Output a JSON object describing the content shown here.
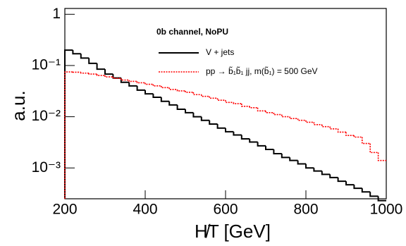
{
  "chart_data": {
    "type": "histogram",
    "annotations": [
      "0b channel, NoPU"
    ],
    "x_label": "H̸T [GeV]",
    "y_label": "a.u.",
    "bins": [
      200,
      220,
      240,
      260,
      280,
      300,
      320,
      340,
      360,
      380,
      400,
      420,
      440,
      460,
      480,
      500,
      520,
      540,
      560,
      580,
      600,
      620,
      640,
      660,
      680,
      700,
      720,
      740,
      760,
      780,
      800,
      820,
      840,
      860,
      880,
      900,
      920,
      940,
      960,
      980,
      1000
    ],
    "series": [
      {
        "name": "V + jets",
        "color": "#000000",
        "style": "solid",
        "values": [
          0.2,
          0.17,
          0.14,
          0.11,
          0.085,
          0.068,
          0.057,
          0.047,
          0.04,
          0.033,
          0.028,
          0.024,
          0.02,
          0.017,
          0.014,
          0.012,
          0.01,
          0.0085,
          0.0072,
          0.006,
          0.0051,
          0.0044,
          0.0037,
          0.0032,
          0.0027,
          0.0023,
          0.0019,
          0.0016,
          0.0014,
          0.0012,
          0.001,
          0.00087,
          0.00075,
          0.00065,
          0.00055,
          0.00047,
          0.0004,
          0.00034,
          0.00028,
          0.00023
        ]
      },
      {
        "name": "pp → b̃₁b̃₁ jj, m(b̃₁) = 500 GeV",
        "color": "#ff0000",
        "style": "dotted",
        "values": [
          0.075,
          0.074,
          0.071,
          0.068,
          0.064,
          0.06,
          0.056,
          0.052,
          0.049,
          0.046,
          0.043,
          0.04,
          0.037,
          0.034,
          0.032,
          0.03,
          0.027,
          0.025,
          0.023,
          0.021,
          0.019,
          0.018,
          0.016,
          0.015,
          0.013,
          0.012,
          0.011,
          0.01,
          0.0092,
          0.0085,
          0.0078,
          0.007,
          0.0064,
          0.0058,
          0.005,
          0.0043,
          0.004,
          0.003,
          0.002,
          0.0014
        ]
      }
    ],
    "xlim": [
      200,
      1000
    ],
    "xticks": [
      200,
      400,
      600,
      800,
      1000
    ],
    "ylim": [
      0.00025,
      1.3
    ],
    "yticks": [
      1,
      {
        "value": 0.1,
        "label": "10⁻¹"
      },
      {
        "value": 0.01,
        "label": "10⁻²"
      },
      {
        "value": 0.001,
        "label": "10⁻³"
      }
    ],
    "log_y": true
  }
}
